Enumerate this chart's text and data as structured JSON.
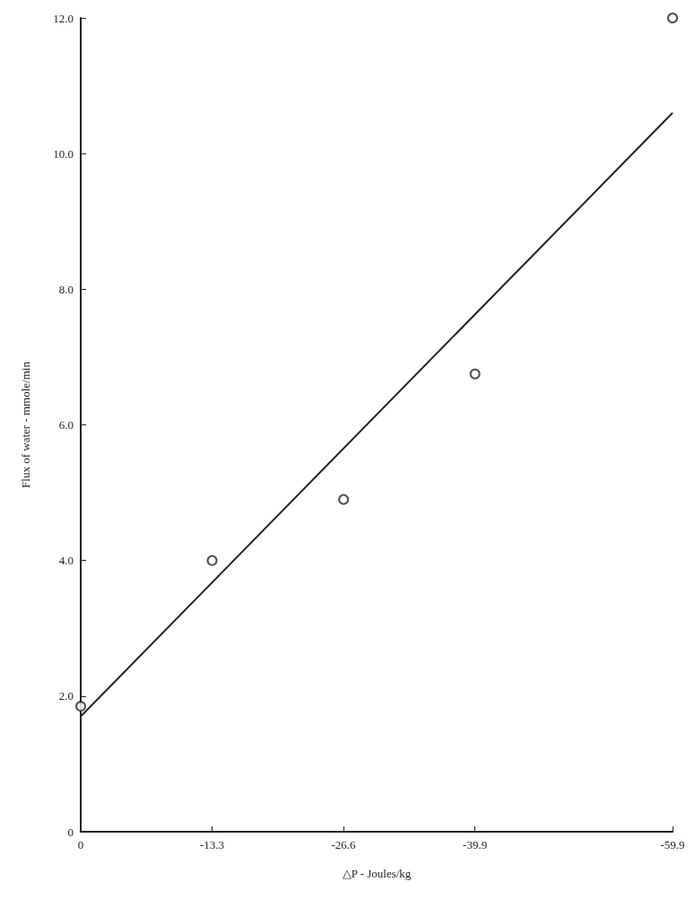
{
  "chart_data": {
    "type": "scatter",
    "xlabel": "△P - Joules/kg",
    "ylabel": "Flux of water - mmole/min",
    "x": [
      0,
      -13.3,
      -26.6,
      -39.9,
      -59.9
    ],
    "series": [
      {
        "type": "scatter",
        "color": "#222222",
        "marker": "circle",
        "values": [
          1.85,
          4.0,
          4.9,
          6.75,
          12.0
        ]
      },
      {
        "type": "line",
        "color": "#222222",
        "marker": "none",
        "line_style": "solid",
        "x": [
          0,
          -59.9
        ],
        "values": [
          1.7,
          10.6
        ]
      }
    ],
    "xlim": [
      0,
      -59.9
    ],
    "xticks": [
      0,
      -13.3,
      -26.6,
      -39.9,
      -59.9
    ],
    "ylim": [
      0,
      12
    ],
    "yticks": [
      {
        "value": 0,
        "label": "0"
      },
      {
        "value": 2,
        "label": "2.0"
      },
      {
        "value": 4,
        "label": "4.0"
      },
      {
        "value": 6,
        "label": "6.0"
      },
      {
        "value": 8,
        "label": "8.0"
      },
      {
        "value": 10,
        "label": "10.0"
      },
      {
        "value": 12,
        "label": "12.0"
      }
    ],
    "grid": false
  }
}
